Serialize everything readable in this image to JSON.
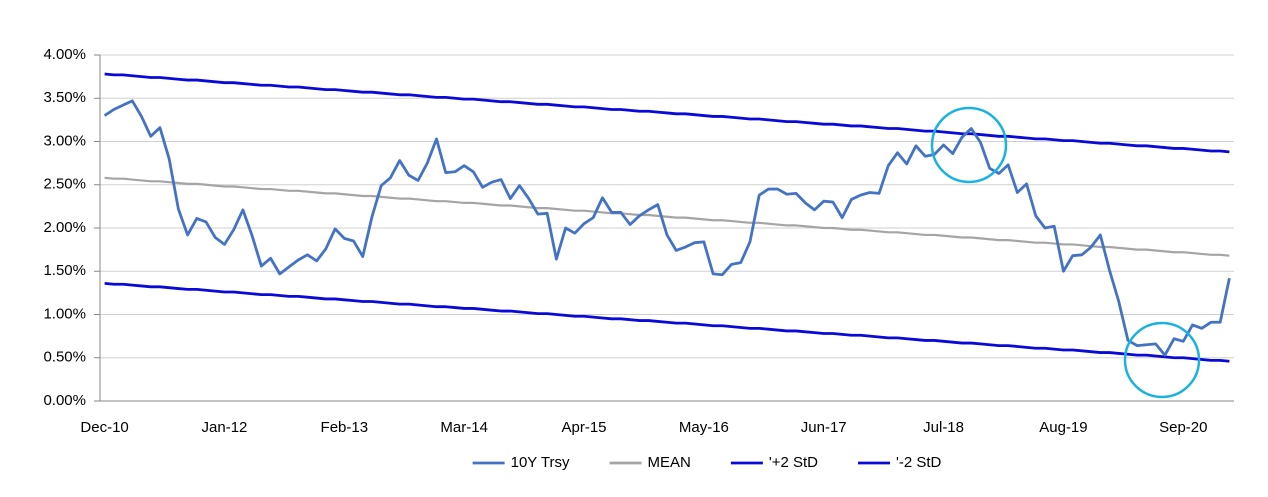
{
  "chart_data": {
    "type": "line",
    "categories": [
      "Dec-10",
      null,
      null,
      null,
      null,
      null,
      null,
      null,
      null,
      null,
      null,
      null,
      null,
      "Jan-12",
      null,
      null,
      null,
      null,
      null,
      null,
      null,
      null,
      null,
      null,
      null,
      null,
      "Feb-13",
      null,
      null,
      null,
      null,
      null,
      null,
      null,
      null,
      null,
      null,
      null,
      null,
      "Mar-14",
      null,
      null,
      null,
      null,
      null,
      null,
      null,
      null,
      null,
      null,
      null,
      null,
      "Apr-15",
      null,
      null,
      null,
      null,
      null,
      null,
      null,
      null,
      null,
      null,
      null,
      null,
      "May-16",
      null,
      null,
      null,
      null,
      null,
      null,
      null,
      null,
      null,
      null,
      null,
      null,
      "Jun-17",
      null,
      null,
      null,
      null,
      null,
      null,
      null,
      null,
      null,
      null,
      null,
      null,
      "Jul-18",
      null,
      null,
      null,
      null,
      null,
      null,
      null,
      null,
      null,
      null,
      null,
      null,
      "Aug-19",
      null,
      null,
      null,
      null,
      null,
      null,
      null,
      null,
      null,
      null,
      null,
      null,
      "Sep-20",
      null,
      null,
      null,
      null,
      null
    ],
    "series": [
      {
        "name": "10Y Trsy",
        "color": "#4472c4",
        "values": [
          3.3,
          3.37,
          3.42,
          3.47,
          3.29,
          3.06,
          3.16,
          2.8,
          2.22,
          1.92,
          2.11,
          2.07,
          1.89,
          1.81,
          1.98,
          2.21,
          1.91,
          1.56,
          1.65,
          1.47,
          1.55,
          1.63,
          1.69,
          1.62,
          1.76,
          1.99,
          1.88,
          1.85,
          1.67,
          2.13,
          2.49,
          2.58,
          2.78,
          2.61,
          2.55,
          2.75,
          3.03,
          2.64,
          2.65,
          2.72,
          2.65,
          2.47,
          2.53,
          2.56,
          2.34,
          2.49,
          2.34,
          2.16,
          2.17,
          1.64,
          2.0,
          1.94,
          2.05,
          2.12,
          2.35,
          2.18,
          2.18,
          2.04,
          2.14,
          2.21,
          2.27,
          1.92,
          1.74,
          1.78,
          1.83,
          1.84,
          1.47,
          1.46,
          1.58,
          1.6,
          1.84,
          2.38,
          2.45,
          2.45,
          2.39,
          2.4,
          2.29,
          2.21,
          2.31,
          2.3,
          2.12,
          2.33,
          2.38,
          2.41,
          2.4,
          2.72,
          2.87,
          2.74,
          2.95,
          2.83,
          2.85,
          2.96,
          2.86,
          3.05,
          3.15,
          2.99,
          2.69,
          2.63,
          2.73,
          2.41,
          2.51,
          2.14,
          2.0,
          2.02,
          1.5,
          1.68,
          1.69,
          1.78,
          1.92,
          1.51,
          1.15,
          0.7,
          0.64,
          0.65,
          0.66,
          0.53,
          0.72,
          0.69,
          0.88,
          0.84,
          0.91,
          0.91,
          1.42
        ]
      },
      {
        "name": "MEAN",
        "color": "#a5a5a5",
        "values": [
          2.58,
          2.57,
          2.57,
          2.56,
          2.55,
          2.54,
          2.54,
          2.53,
          2.52,
          2.51,
          2.51,
          2.5,
          2.49,
          2.48,
          2.48,
          2.47,
          2.46,
          2.45,
          2.45,
          2.44,
          2.43,
          2.43,
          2.42,
          2.41,
          2.4,
          2.4,
          2.39,
          2.38,
          2.37,
          2.37,
          2.36,
          2.35,
          2.34,
          2.34,
          2.33,
          2.32,
          2.31,
          2.31,
          2.3,
          2.29,
          2.29,
          2.28,
          2.27,
          2.26,
          2.26,
          2.25,
          2.24,
          2.23,
          2.23,
          2.22,
          2.21,
          2.2,
          2.2,
          2.19,
          2.18,
          2.17,
          2.17,
          2.16,
          2.15,
          2.15,
          2.14,
          2.13,
          2.12,
          2.12,
          2.11,
          2.1,
          2.09,
          2.09,
          2.08,
          2.07,
          2.06,
          2.06,
          2.05,
          2.04,
          2.03,
          2.03,
          2.02,
          2.01,
          2.0,
          2.0,
          1.99,
          1.98,
          1.98,
          1.97,
          1.96,
          1.95,
          1.95,
          1.94,
          1.93,
          1.92,
          1.92,
          1.91,
          1.9,
          1.89,
          1.89,
          1.88,
          1.87,
          1.86,
          1.86,
          1.85,
          1.84,
          1.83,
          1.83,
          1.82,
          1.81,
          1.81,
          1.8,
          1.79,
          1.78,
          1.78,
          1.77,
          1.76,
          1.75,
          1.75,
          1.74,
          1.73,
          1.72,
          1.72,
          1.71,
          1.7,
          1.69,
          1.69,
          1.68
        ]
      },
      {
        "name": "'+2 StD",
        "color": "#0a0ad8",
        "values": [
          3.78,
          3.77,
          3.77,
          3.76,
          3.75,
          3.74,
          3.74,
          3.73,
          3.72,
          3.71,
          3.71,
          3.7,
          3.69,
          3.68,
          3.68,
          3.67,
          3.66,
          3.65,
          3.65,
          3.64,
          3.63,
          3.63,
          3.62,
          3.61,
          3.6,
          3.6,
          3.59,
          3.58,
          3.57,
          3.57,
          3.56,
          3.55,
          3.54,
          3.54,
          3.53,
          3.52,
          3.51,
          3.51,
          3.5,
          3.49,
          3.49,
          3.48,
          3.47,
          3.46,
          3.46,
          3.45,
          3.44,
          3.43,
          3.43,
          3.42,
          3.41,
          3.4,
          3.4,
          3.39,
          3.38,
          3.37,
          3.37,
          3.36,
          3.35,
          3.35,
          3.34,
          3.33,
          3.32,
          3.32,
          3.31,
          3.3,
          3.29,
          3.29,
          3.28,
          3.27,
          3.26,
          3.26,
          3.25,
          3.24,
          3.23,
          3.23,
          3.22,
          3.21,
          3.2,
          3.2,
          3.19,
          3.18,
          3.18,
          3.17,
          3.16,
          3.15,
          3.15,
          3.14,
          3.13,
          3.12,
          3.12,
          3.11,
          3.1,
          3.09,
          3.09,
          3.08,
          3.07,
          3.06,
          3.06,
          3.05,
          3.04,
          3.03,
          3.03,
          3.02,
          3.01,
          3.01,
          3.0,
          2.99,
          2.98,
          2.98,
          2.97,
          2.96,
          2.95,
          2.95,
          2.94,
          2.93,
          2.92,
          2.92,
          2.91,
          2.9,
          2.89,
          2.89,
          2.88
        ]
      },
      {
        "name": "'-2 StD",
        "color": "#0a0ad8",
        "values": [
          1.36,
          1.35,
          1.35,
          1.34,
          1.33,
          1.32,
          1.32,
          1.31,
          1.3,
          1.29,
          1.29,
          1.28,
          1.27,
          1.26,
          1.26,
          1.25,
          1.24,
          1.23,
          1.23,
          1.22,
          1.21,
          1.21,
          1.2,
          1.19,
          1.18,
          1.18,
          1.17,
          1.16,
          1.15,
          1.15,
          1.14,
          1.13,
          1.12,
          1.12,
          1.11,
          1.1,
          1.09,
          1.09,
          1.08,
          1.07,
          1.07,
          1.06,
          1.05,
          1.04,
          1.04,
          1.03,
          1.02,
          1.01,
          1.01,
          1.0,
          0.99,
          0.98,
          0.98,
          0.97,
          0.96,
          0.95,
          0.95,
          0.94,
          0.93,
          0.93,
          0.92,
          0.91,
          0.9,
          0.9,
          0.89,
          0.88,
          0.87,
          0.87,
          0.86,
          0.85,
          0.84,
          0.84,
          0.83,
          0.82,
          0.81,
          0.81,
          0.8,
          0.79,
          0.78,
          0.78,
          0.77,
          0.76,
          0.76,
          0.75,
          0.74,
          0.73,
          0.73,
          0.72,
          0.71,
          0.7,
          0.7,
          0.69,
          0.68,
          0.67,
          0.67,
          0.66,
          0.65,
          0.64,
          0.64,
          0.63,
          0.62,
          0.61,
          0.61,
          0.6,
          0.59,
          0.59,
          0.58,
          0.57,
          0.56,
          0.56,
          0.55,
          0.54,
          0.53,
          0.53,
          0.52,
          0.51,
          0.5,
          0.5,
          0.49,
          0.48,
          0.47,
          0.47,
          0.46
        ]
      }
    ],
    "ylim": [
      0,
      4
    ],
    "yticks": [
      {
        "value": 0,
        "label": "0.00%"
      },
      {
        "value": 0.5,
        "label": "0.50%"
      },
      {
        "value": 1,
        "label": "1.00%"
      },
      {
        "value": 1.5,
        "label": "1.50%"
      },
      {
        "value": 2,
        "label": "2.00%"
      },
      {
        "value": 2.5,
        "label": "2.50%"
      },
      {
        "value": 3,
        "label": "3.00%"
      },
      {
        "value": 3.5,
        "label": "3.50%"
      },
      {
        "value": 4,
        "label": "4.00%"
      }
    ],
    "grid": true,
    "legend": "bottom"
  }
}
